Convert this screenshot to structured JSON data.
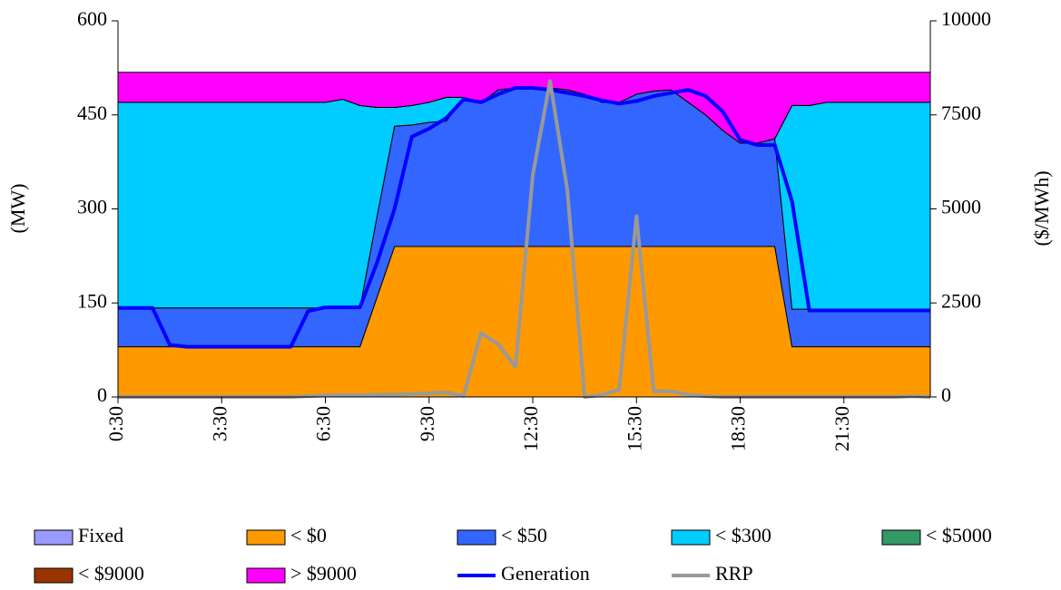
{
  "chart_data": {
    "type": "area",
    "stacked": true,
    "y_label": "(MW)",
    "y2_label": "($/MWh)",
    "categories": [
      "0:30",
      null,
      null,
      null,
      null,
      null,
      "3:30",
      null,
      null,
      null,
      null,
      null,
      "6:30",
      null,
      null,
      null,
      null,
      null,
      "9:30",
      null,
      null,
      null,
      null,
      null,
      "12:30",
      null,
      null,
      null,
      null,
      null,
      "15:30",
      null,
      null,
      null,
      null,
      null,
      "18:30",
      null,
      null,
      null,
      null,
      null,
      "21:30",
      null,
      null,
      null,
      null,
      null
    ],
    "ylim": [
      0,
      600
    ],
    "yticks": [
      0,
      150,
      300,
      450,
      600
    ],
    "y2lim": [
      0,
      10000
    ],
    "y2ticks": [
      0,
      2500,
      5000,
      7500,
      10000
    ],
    "series": [
      {
        "name": "Fixed",
        "kind": "area",
        "color": "#9999ff",
        "values": [
          0,
          0,
          0,
          0,
          0,
          0,
          0,
          0,
          0,
          0,
          0,
          0,
          0,
          0,
          0,
          0,
          0,
          0,
          0,
          0,
          0,
          0,
          0,
          0,
          0,
          0,
          0,
          0,
          0,
          0,
          0,
          0,
          0,
          0,
          0,
          0,
          0,
          0,
          0,
          0,
          0,
          0,
          0,
          0,
          0,
          0,
          0,
          0
        ]
      },
      {
        "name": "< $0",
        "kind": "area",
        "color": "#ff9900",
        "values": [
          80,
          80,
          80,
          80,
          80,
          80,
          80,
          80,
          80,
          80,
          80,
          80,
          80,
          80,
          80,
          160,
          240,
          240,
          240,
          240,
          240,
          240,
          240,
          240,
          240,
          240,
          240,
          240,
          240,
          240,
          240,
          240,
          240,
          240,
          240,
          240,
          240,
          240,
          240,
          80,
          80,
          80,
          80,
          80,
          80,
          80,
          80,
          80
        ]
      },
      {
        "name": "< $50",
        "kind": "area",
        "color": "#3366ff",
        "values": [
          62,
          62,
          62,
          62,
          62,
          62,
          62,
          62,
          62,
          62,
          62,
          62,
          62,
          62,
          62,
          130,
          192,
          194,
          198,
          200,
          238,
          230,
          250,
          253,
          253,
          253,
          250,
          243,
          230,
          230,
          243,
          248,
          250,
          230,
          210,
          185,
          165,
          165,
          172,
          60,
          60,
          60,
          60,
          60,
          60,
          60,
          60,
          60
        ]
      },
      {
        "name": "< $300",
        "kind": "area",
        "color": "#00ccff",
        "values": [
          328,
          328,
          328,
          328,
          328,
          328,
          328,
          328,
          328,
          328,
          328,
          328,
          328,
          333,
          323,
          172,
          30,
          31,
          32,
          38,
          0,
          0,
          0,
          0,
          0,
          0,
          0,
          0,
          0,
          0,
          0,
          0,
          0,
          0,
          0,
          0,
          0,
          0,
          0,
          325,
          325,
          330,
          330,
          330,
          330,
          330,
          330,
          330
        ]
      },
      {
        "name": "< $5000",
        "kind": "area",
        "color": "#339966",
        "values": [
          0,
          0,
          0,
          0,
          0,
          0,
          0,
          0,
          0,
          0,
          0,
          0,
          0,
          0,
          0,
          0,
          0,
          0,
          0,
          0,
          0,
          0,
          0,
          0,
          0,
          0,
          0,
          0,
          0,
          0,
          0,
          0,
          0,
          0,
          0,
          0,
          0,
          0,
          0,
          0,
          0,
          0,
          0,
          0,
          0,
          0,
          0,
          0
        ]
      },
      {
        "name": "< $9000",
        "kind": "area",
        "color": "#993300",
        "values": [
          0,
          0,
          0,
          0,
          0,
          0,
          0,
          0,
          0,
          0,
          0,
          0,
          0,
          0,
          0,
          0,
          0,
          0,
          0,
          0,
          0,
          0,
          0,
          0,
          0,
          0,
          0,
          0,
          0,
          0,
          0,
          0,
          0,
          0,
          0,
          0,
          0,
          0,
          0,
          0,
          0,
          0,
          0,
          0,
          0,
          0,
          0,
          0
        ]
      },
      {
        "name": "> $9000",
        "kind": "area",
        "color": "#ff00ff",
        "values": [
          48,
          48,
          48,
          48,
          48,
          48,
          48,
          48,
          48,
          48,
          48,
          48,
          48,
          43,
          53,
          56,
          56,
          53,
          48,
          40,
          40,
          48,
          28,
          25,
          25,
          25,
          28,
          35,
          48,
          48,
          35,
          30,
          28,
          48,
          68,
          93,
          113,
          113,
          106,
          53,
          53,
          48,
          48,
          48,
          48,
          48,
          48,
          48
        ]
      },
      {
        "name": "Generation",
        "kind": "line",
        "color": "#0000ff",
        "values": [
          142,
          142,
          142,
          83,
          80,
          80,
          80,
          80,
          80,
          80,
          80,
          137,
          143,
          143,
          143,
          215,
          300,
          415,
          428,
          445,
          475,
          470,
          483,
          493,
          493,
          490,
          485,
          480,
          473,
          468,
          472,
          480,
          485,
          490,
          480,
          455,
          410,
          402,
          402,
          312,
          138,
          138,
          138,
          138,
          138,
          138,
          138,
          138
        ]
      },
      {
        "name": "RRP",
        "kind": "line",
        "axis": "y2",
        "color": "#999999",
        "values": [
          0,
          0,
          0,
          0,
          0,
          0,
          0,
          0,
          0,
          0,
          0,
          20,
          40,
          50,
          50,
          60,
          60,
          80,
          100,
          120,
          30,
          1700,
          1400,
          800,
          5900,
          8400,
          5500,
          0,
          50,
          200,
          4800,
          150,
          150,
          60,
          20,
          0,
          0,
          0,
          0,
          0,
          0,
          0,
          0,
          0,
          0,
          0,
          20,
          0
        ]
      }
    ]
  }
}
